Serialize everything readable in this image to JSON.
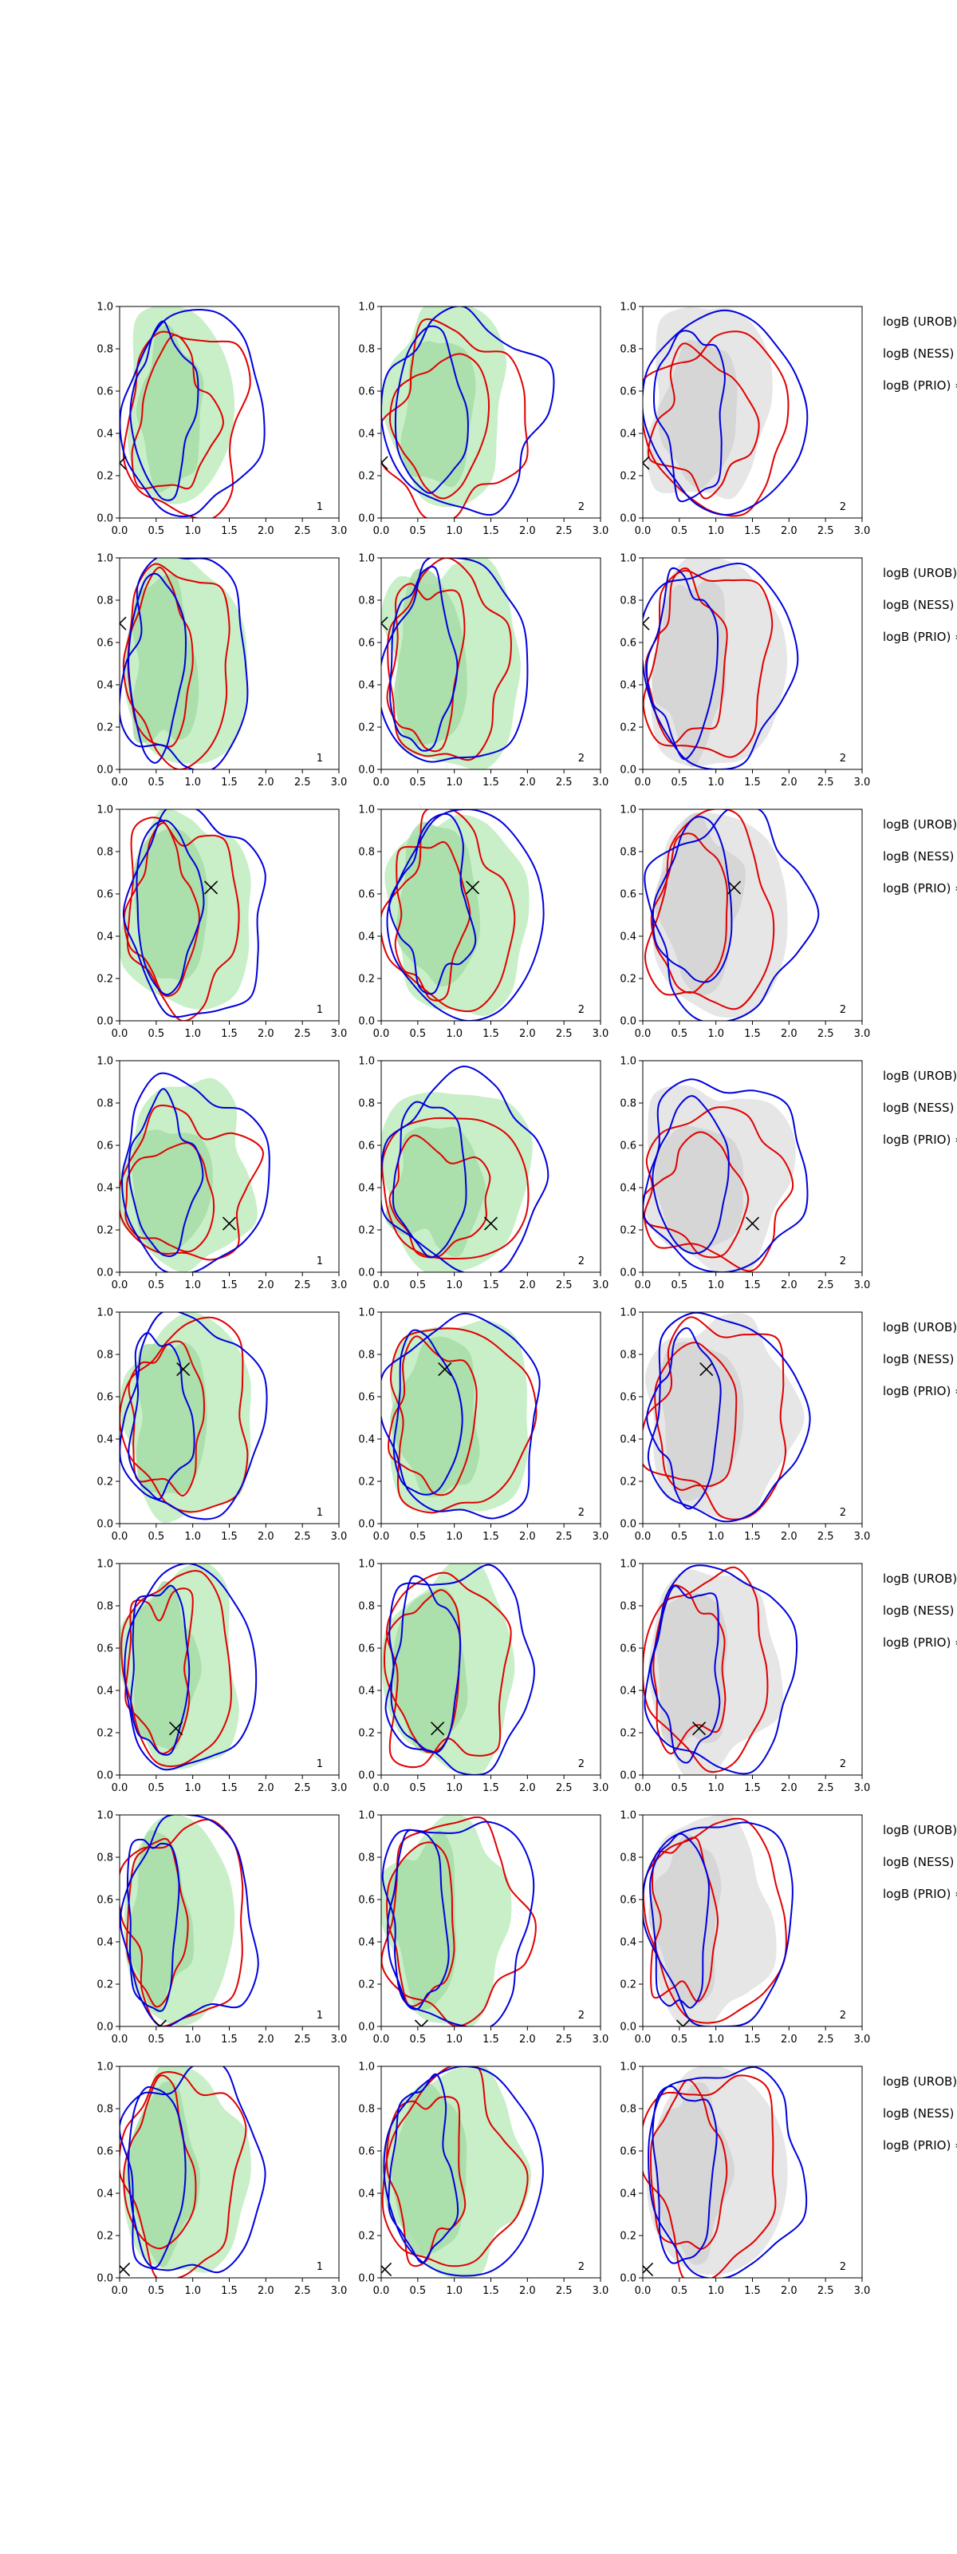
{
  "chart_data": {
    "type": "contour",
    "grid": false,
    "xlim": [
      0.0,
      3.0
    ],
    "ylim": [
      0.0,
      1.0
    ],
    "xticks": [
      "0.0",
      "0.5",
      "1.0",
      "1.5",
      "2.0",
      "2.5",
      "3.0"
    ],
    "yticks": [
      "0.0",
      "0.2",
      "0.4",
      "0.6",
      "0.8",
      "1.0"
    ],
    "colors": {
      "green_fill_outer": "#c8efc8",
      "green_fill_inner": "#a6dca6",
      "grey_fill_outer": "#e6e6e6",
      "grey_fill_inner": "#d2d2d2",
      "red": "#e00000",
      "blue": "#0000dd",
      "marker": "#000000"
    },
    "logb_labels": [
      "logB (UROB) =",
      "logB (NESS) =",
      "logB (PRIO) ="
    ],
    "rows": [
      {
        "marker": [
          0.0,
          0.26
        ],
        "panel_tags": [
          "1",
          "2",
          "2"
        ]
      },
      {
        "marker": [
          0.0,
          0.69
        ],
        "panel_tags": [
          "1",
          "2",
          "2"
        ]
      },
      {
        "marker": [
          1.25,
          0.63
        ],
        "panel_tags": [
          "1",
          "2",
          "2"
        ]
      },
      {
        "marker": [
          1.5,
          0.23
        ],
        "panel_tags": [
          "1",
          "2",
          "2"
        ]
      },
      {
        "marker": [
          0.87,
          0.73
        ],
        "panel_tags": [
          "1",
          "2",
          "2"
        ]
      },
      {
        "marker": [
          0.77,
          0.22
        ],
        "panel_tags": [
          "1",
          "2",
          "2"
        ]
      },
      {
        "marker": [
          0.55,
          0.0
        ],
        "panel_tags": [
          "1",
          "2",
          "2"
        ]
      },
      {
        "marker": [
          0.05,
          0.04
        ],
        "panel_tags": [
          "1",
          "2",
          "2"
        ]
      }
    ]
  }
}
